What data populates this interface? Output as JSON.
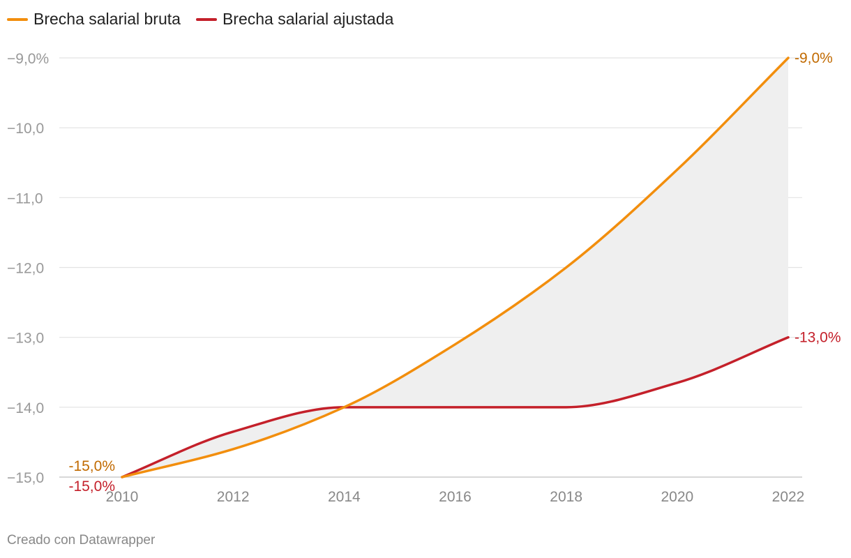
{
  "chart_data": {
    "type": "line",
    "title": "",
    "xlabel": "",
    "ylabel": "",
    "x": [
      2010,
      2012,
      2014,
      2016,
      2018,
      2020,
      2022
    ],
    "x_ticks": [
      "2010",
      "2012",
      "2014",
      "2016",
      "2018",
      "2020",
      "2022"
    ],
    "y_ticks": [
      "−9,0%",
      "−10,0",
      "−11,0",
      "−12,0",
      "−13,0",
      "−14,0",
      "−15,0"
    ],
    "y_tick_values": [
      -9,
      -10,
      -11,
      -12,
      -13,
      -14,
      -15
    ],
    "ylim": [
      -15,
      -9
    ],
    "xlim": [
      2010,
      2022
    ],
    "grid": true,
    "shaded_area_between_series": true,
    "legend_position": "top-left",
    "series": [
      {
        "name": "Brecha salarial bruta",
        "color": "#f28e0d",
        "label_color": "#c16a00",
        "values": [
          -15.0,
          -14.6,
          -14.0,
          -13.1,
          -12.0,
          -10.6,
          -9.0
        ],
        "start_label": "-15,0%",
        "end_label": "-9,0%"
      },
      {
        "name": "Brecha salarial ajustada",
        "color": "#c4202a",
        "label_color": "#c4202a",
        "values": [
          -15.0,
          -14.35,
          -14.0,
          -14.0,
          -14.0,
          -13.65,
          -13.0
        ],
        "start_label": "-15,0%",
        "end_label": "-13,0%"
      }
    ]
  },
  "footer": {
    "credit": "Creado con Datawrapper"
  }
}
